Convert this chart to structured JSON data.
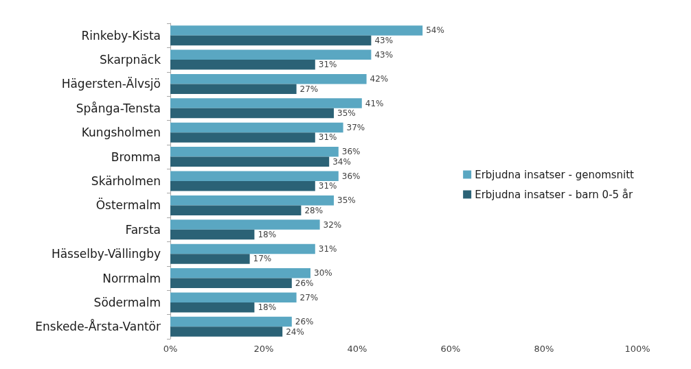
{
  "chart_data": {
    "type": "bar",
    "orientation": "horizontal",
    "categories": [
      "Rinkeby-Kista",
      "Skarpnäck",
      "Hägersten-Älvsjö",
      "Spånga-Tensta",
      "Kungsholmen",
      "Bromma",
      "Skärholmen",
      "Östermalm",
      "Farsta",
      "Hässelby-Vällingby",
      "Norrmalm",
      "Södermalm",
      "Enskede-Årsta-Vantör"
    ],
    "series": [
      {
        "name": "Erbjudna insatser - genomsnitt",
        "color": "#5aa7c2",
        "values": [
          54,
          43,
          42,
          41,
          37,
          36,
          36,
          35,
          32,
          31,
          30,
          27,
          26
        ],
        "value_labels": [
          "54%",
          "43%",
          "42%",
          "41%",
          "37%",
          "36%",
          "36%",
          "35%",
          "32%",
          "31%",
          "30%",
          "27%",
          "26%"
        ]
      },
      {
        "name": "Erbjudna insatser - barn 0-5 år",
        "color": "#2b6276",
        "values": [
          43,
          31,
          27,
          35,
          31,
          34,
          31,
          28,
          18,
          17,
          26,
          18,
          24
        ],
        "value_labels": [
          "43%",
          "31%",
          "27%",
          "35%",
          "31%",
          "34%",
          "31%",
          "28%",
          "18%",
          "17%",
          "26%",
          "18%",
          "24%"
        ]
      }
    ],
    "xlim": [
      0,
      100
    ],
    "xticks": [
      {
        "value": 0,
        "label": "0%"
      },
      {
        "value": 20,
        "label": "20%"
      },
      {
        "value": 40,
        "label": "40%"
      },
      {
        "value": 60,
        "label": "60%"
      },
      {
        "value": 80,
        "label": "80%"
      },
      {
        "value": 100,
        "label": "100%"
      }
    ],
    "grid": false,
    "legend": "right"
  }
}
